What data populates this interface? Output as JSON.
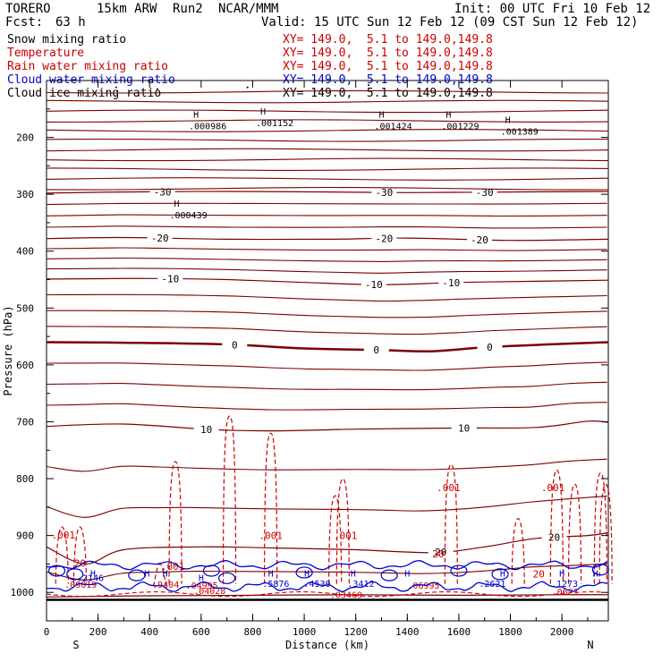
{
  "header": {
    "model": "TORERO",
    "resolution": "15km ARW",
    "run": "Run2",
    "center": "NCAR/MMM",
    "init": "Init: 00 UTC Fri 10 Feb 12",
    "fcst_label": "Fcst:",
    "fcst_value": "63 h",
    "valid": "Valid: 15 UTC Sun 12 Feb 12 (09 CST Sun 12 Feb 12)"
  },
  "fields": [
    {
      "name": "Snow mixing ratio",
      "xy": "XY= 149.0,  5.1 to 149.0,149.8",
      "color": "#000000"
    },
    {
      "name": "Temperature",
      "xy": "XY= 149.0,  5.1 to 149.0,149.8",
      "color": "#cc0000"
    },
    {
      "name": "Rain water mixing ratio",
      "xy": "XY= 149.0,  5.1 to 149.0,149.8",
      "color": "#cc0000"
    },
    {
      "name": "Cloud water mixing ratio",
      "xy": "XY= 149.0,  5.1 to 149.0,149.8",
      "color": "#0000cc"
    },
    {
      "name": "Cloud ice mixing ratio",
      "xy": "XY= 149.0,  5.1 to 149.0,149.8",
      "color": "#000000"
    }
  ],
  "chart_data": {
    "type": "contour cross-section",
    "xlabel": "Distance (km)",
    "ylabel": "Pressure (hPa)",
    "xlim": [
      0,
      2180
    ],
    "ylim": [
      1050,
      100
    ],
    "x_ticks": [
      0,
      200,
      400,
      600,
      800,
      1000,
      1200,
      1400,
      1600,
      1800,
      2000
    ],
    "y_ticks": [
      200,
      300,
      400,
      500,
      600,
      700,
      800,
      900,
      1000
    ],
    "left_end_label": "S",
    "right_end_label": "N",
    "colors": {
      "temperature": "#7a0000",
      "rain": "#cc0000",
      "cloud_water": "#0000cc",
      "snow": "#000000",
      "ground": "#000000"
    },
    "temperature_contours": [
      {
        "level": -30,
        "label": "-30",
        "points": [
          [
            0,
            298
          ],
          [
            300,
            296
          ],
          [
            700,
            295
          ],
          [
            1100,
            296
          ],
          [
            1400,
            297
          ],
          [
            1800,
            296
          ],
          [
            2180,
            295
          ]
        ],
        "label_x": [
          450,
          1310,
          1700
        ]
      },
      {
        "level": -20,
        "label": "-20",
        "points": [
          [
            0,
            378
          ],
          [
            300,
            376
          ],
          [
            700,
            379
          ],
          [
            1100,
            379
          ],
          [
            1400,
            377
          ],
          [
            1800,
            381
          ],
          [
            2180,
            379
          ]
        ],
        "label_x": [
          440,
          1310,
          1680
        ]
      },
      {
        "level": -10,
        "label": "-10",
        "points": [
          [
            0,
            449
          ],
          [
            400,
            448
          ],
          [
            700,
            450
          ],
          [
            1000,
            455
          ],
          [
            1300,
            459
          ],
          [
            1600,
            455
          ],
          [
            1900,
            453
          ],
          [
            2180,
            451
          ]
        ],
        "label_x": [
          480,
          1270,
          1570
        ]
      },
      {
        "level": 0,
        "label": "0",
        "points": [
          [
            0,
            560
          ],
          [
            300,
            561
          ],
          [
            700,
            564
          ],
          [
            1000,
            571
          ],
          [
            1300,
            574
          ],
          [
            1500,
            576
          ],
          [
            1700,
            569
          ],
          [
            2000,
            563
          ],
          [
            2180,
            560
          ]
        ],
        "label_x": [
          730,
          1280,
          1720
        ]
      },
      {
        "level": 10,
        "label": "10",
        "points": [
          [
            0,
            708
          ],
          [
            300,
            704
          ],
          [
            650,
            714
          ],
          [
            900,
            716
          ],
          [
            1200,
            713
          ],
          [
            1600,
            711
          ],
          [
            1900,
            710
          ],
          [
            2100,
            699
          ],
          [
            2180,
            701
          ]
        ],
        "label_x": [
          620,
          1620
        ]
      },
      {
        "level": 20,
        "label": "20",
        "points": [
          [
            0,
            920
          ],
          [
            150,
            950
          ],
          [
            300,
            925
          ],
          [
            600,
            920
          ],
          [
            900,
            922
          ],
          [
            1200,
            925
          ],
          [
            1500,
            930
          ],
          [
            1700,
            920
          ],
          [
            1900,
            905
          ],
          [
            2100,
            900
          ],
          [
            2180,
            895
          ]
        ],
        "label_x": [
          1530,
          1970
        ]
      },
      {
        "level": 30,
        "label": "30",
        "points": [
          [
            0,
            1008
          ],
          [
            400,
            1006
          ],
          [
            800,
            1005
          ],
          [
            1200,
            1004
          ],
          [
            1600,
            1005
          ],
          [
            2000,
            1004
          ],
          [
            2180,
            1004
          ]
        ],
        "label_x": []
      }
    ],
    "rain_contour_labels": [
      ".001",
      ".001",
      ".001",
      ".001",
      ".001",
      ".001",
      "20",
      "20",
      "20"
    ],
    "snow_maxima": [
      {
        "label": "H",
        "value": ".000986",
        "x": 580,
        "p": 165
      },
      {
        "label": "H",
        "value": ".001152",
        "x": 840,
        "p": 160
      },
      {
        "label": "H",
        "value": ".001424",
        "x": 1300,
        "p": 165
      },
      {
        "label": "H",
        "value": ".001229",
        "x": 1560,
        "p": 165
      },
      {
        "label": "H",
        "value": ".001389",
        "x": 1790,
        "p": 175
      },
      {
        "label": "H",
        "value": ".000439",
        "x": 505,
        "p": 322
      }
    ],
    "cloud_water_maxima": [
      ".2146",
      ".5876",
      ".4530",
      ".3412",
      ".2621",
      ".1273"
    ],
    "rain_maxima": [
      ".09019",
      ".9404",
      ".04995",
      ".04028",
      ".03469",
      ".06995",
      ".0621"
    ]
  }
}
